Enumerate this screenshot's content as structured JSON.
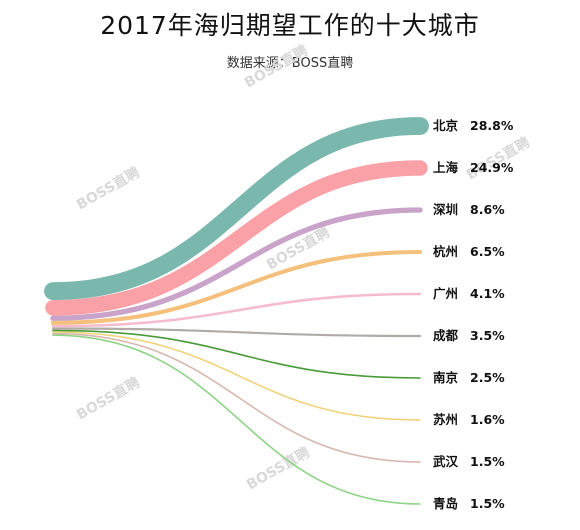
{
  "chart_data": {
    "type": "sankey",
    "title": "2017年海归期望工作的十大城市",
    "subtitle": "数据来源：BOSS直聘",
    "watermark": "BOSS直聘",
    "unit": "%",
    "categories": [
      "北京",
      "上海",
      "深圳",
      "杭州",
      "广州",
      "成都",
      "南京",
      "苏州",
      "武汉",
      "青岛"
    ],
    "values": [
      28.8,
      24.9,
      8.6,
      6.5,
      4.1,
      3.5,
      2.5,
      1.6,
      1.5,
      1.5
    ],
    "value_labels": [
      "28.8%",
      "24.9%",
      "8.6%",
      "6.5%",
      "4.1%",
      "3.5%",
      "2.5%",
      "1.6%",
      "1.5%",
      "1.5%"
    ],
    "colors": [
      "#7ab8ae",
      "#f9a1a7",
      "#c9a3c9",
      "#f5c07c",
      "#f5bcd0",
      "#b0aba4",
      "#4a9a3a",
      "#f0d37c",
      "#d6b8b0",
      "#8ed486"
    ]
  }
}
